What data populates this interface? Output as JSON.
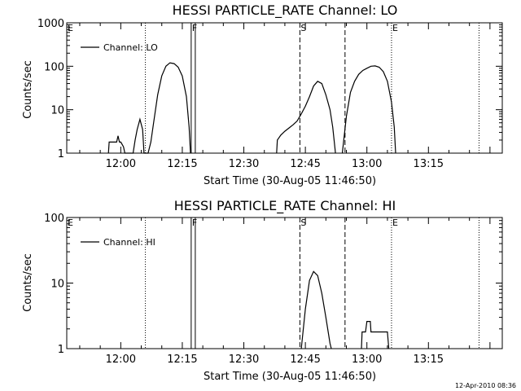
{
  "footer": {
    "timestamp": "12-Apr-2010 08:36"
  },
  "chart_data": [
    {
      "type": "line",
      "title": "HESSI PARTICLE_RATE Channel: LO",
      "xlabel": "Start Time (30-Aug-05 11:46:50)",
      "ylabel": "Counts/sec",
      "y_scale": "log",
      "ylim": [
        1,
        1000
      ],
      "xlim": [
        "11:46:50",
        "13:33:00"
      ],
      "x_ticks": [
        "12:00",
        "12:15",
        "12:30",
        "12:45",
        "13:00",
        "13:15"
      ],
      "y_ticks": [
        "1",
        "10",
        "100",
        "1000"
      ],
      "legend": {
        "position": "top-left",
        "entries": [
          "Channel: LO"
        ]
      },
      "markers": [
        {
          "time": "11:46:50",
          "style": "none",
          "label": "E"
        },
        {
          "time": "12:06:00",
          "style": "dotted",
          "label": ""
        },
        {
          "time": "12:17:10",
          "style": "solid",
          "label": "F"
        },
        {
          "time": "12:18:10",
          "style": "solid",
          "label": ""
        },
        {
          "time": "12:43:40",
          "style": "dashed",
          "label": "S"
        },
        {
          "time": "12:54:40",
          "style": "dashed",
          "label": ""
        },
        {
          "time": "13:06:00",
          "style": "dotted",
          "label": "E"
        },
        {
          "time": "13:27:20",
          "style": "dotted",
          "label": ""
        }
      ],
      "series": [
        {
          "name": "Channel: LO",
          "points": [
            [
              "11:57:00",
              1
            ],
            [
              "11:57:10",
              1.8
            ],
            [
              "11:58:00",
              1.8
            ],
            [
              "11:59:00",
              1.8
            ],
            [
              "11:59:20",
              2.5
            ],
            [
              "11:59:40",
              1.8
            ],
            [
              "12:00:00",
              1.8
            ],
            [
              "12:00:40",
              1.4
            ],
            [
              "12:01:00",
              1
            ],
            [
              "12:03:00",
              1
            ],
            [
              "12:03:30",
              2.0
            ],
            [
              "12:04:00",
              3.5
            ],
            [
              "12:04:40",
              6.0
            ],
            [
              "12:05:20",
              3.5
            ],
            [
              "12:05:40",
              1
            ],
            [
              "12:06:40",
              1
            ],
            [
              "12:07:20",
              1.8
            ],
            [
              "12:08:00",
              5
            ],
            [
              "12:09:00",
              22
            ],
            [
              "12:10:00",
              60
            ],
            [
              "12:11:00",
              100
            ],
            [
              "12:12:00",
              120
            ],
            [
              "12:13:00",
              115
            ],
            [
              "12:14:00",
              95
            ],
            [
              "12:15:00",
              60
            ],
            [
              "12:16:00",
              20
            ],
            [
              "12:16:40",
              4
            ],
            [
              "12:17:00",
              1
            ]
          ]
        },
        {
          "name": "Channel: LO",
          "points": [
            [
              "12:38:00",
              1
            ],
            [
              "12:38:10",
              2.0
            ],
            [
              "12:39:00",
              2.6
            ],
            [
              "12:40:00",
              3.2
            ],
            [
              "12:41:00",
              3.8
            ],
            [
              "12:42:00",
              4.5
            ],
            [
              "12:43:00",
              5.5
            ],
            [
              "12:44:00",
              8
            ],
            [
              "12:45:00",
              12
            ],
            [
              "12:46:00",
              20
            ],
            [
              "12:47:00",
              35
            ],
            [
              "12:48:00",
              45
            ],
            [
              "12:49:00",
              40
            ],
            [
              "12:50:00",
              22
            ],
            [
              "12:51:00",
              10
            ],
            [
              "12:51:40",
              4
            ],
            [
              "12:52:00",
              2
            ],
            [
              "12:52:20",
              1
            ]
          ]
        },
        {
          "name": "Channel: LO",
          "points": [
            [
              "12:54:00",
              1
            ],
            [
              "12:55:00",
              7
            ],
            [
              "12:56:00",
              25
            ],
            [
              "12:57:00",
              45
            ],
            [
              "12:58:00",
              65
            ],
            [
              "12:59:00",
              80
            ],
            [
              "13:00:00",
              90
            ],
            [
              "13:01:00",
              100
            ],
            [
              "13:02:00",
              102
            ],
            [
              "13:03:00",
              95
            ],
            [
              "13:04:00",
              75
            ],
            [
              "13:05:00",
              45
            ],
            [
              "13:06:00",
              15
            ],
            [
              "13:06:40",
              4
            ],
            [
              "13:07:00",
              1
            ]
          ]
        }
      ]
    },
    {
      "type": "line",
      "title": "HESSI PARTICLE_RATE Channel: HI",
      "xlabel": "Start Time (30-Aug-05 11:46:50)",
      "ylabel": "Counts/sec",
      "y_scale": "log",
      "ylim": [
        1,
        100
      ],
      "xlim": [
        "11:46:50",
        "13:33:00"
      ],
      "x_ticks": [
        "12:00",
        "12:15",
        "12:30",
        "12:45",
        "13:00",
        "13:15"
      ],
      "y_ticks": [
        "1",
        "10",
        "100"
      ],
      "legend": {
        "position": "top-left",
        "entries": [
          "Channel: HI"
        ]
      },
      "markers": [
        {
          "time": "11:46:50",
          "style": "none",
          "label": "E"
        },
        {
          "time": "12:06:00",
          "style": "dotted",
          "label": ""
        },
        {
          "time": "12:17:10",
          "style": "solid",
          "label": "F"
        },
        {
          "time": "12:18:10",
          "style": "solid",
          "label": ""
        },
        {
          "time": "12:43:40",
          "style": "dashed",
          "label": "S"
        },
        {
          "time": "12:54:40",
          "style": "dashed",
          "label": ""
        },
        {
          "time": "13:06:00",
          "style": "dotted",
          "label": "E"
        },
        {
          "time": "13:27:20",
          "style": "dotted",
          "label": ""
        }
      ],
      "series": [
        {
          "name": "Channel: HI",
          "points": [
            [
              "12:44:00",
              1
            ],
            [
              "12:45:00",
              4
            ],
            [
              "12:46:00",
              11
            ],
            [
              "12:47:00",
              15
            ],
            [
              "12:48:00",
              13
            ],
            [
              "12:49:00",
              7
            ],
            [
              "12:50:00",
              3
            ],
            [
              "12:51:00",
              1.2
            ],
            [
              "12:51:20",
              1
            ]
          ]
        },
        {
          "name": "Channel: HI",
          "points": [
            [
              "12:58:40",
              1
            ],
            [
              "12:58:50",
              1.8
            ],
            [
              "12:59:40",
              1.8
            ],
            [
              "13:00:00",
              2.6
            ],
            [
              "13:00:50",
              2.6
            ],
            [
              "13:01:00",
              1.8
            ],
            [
              "13:05:00",
              1.8
            ],
            [
              "13:05:20",
              1
            ]
          ]
        }
      ]
    }
  ]
}
